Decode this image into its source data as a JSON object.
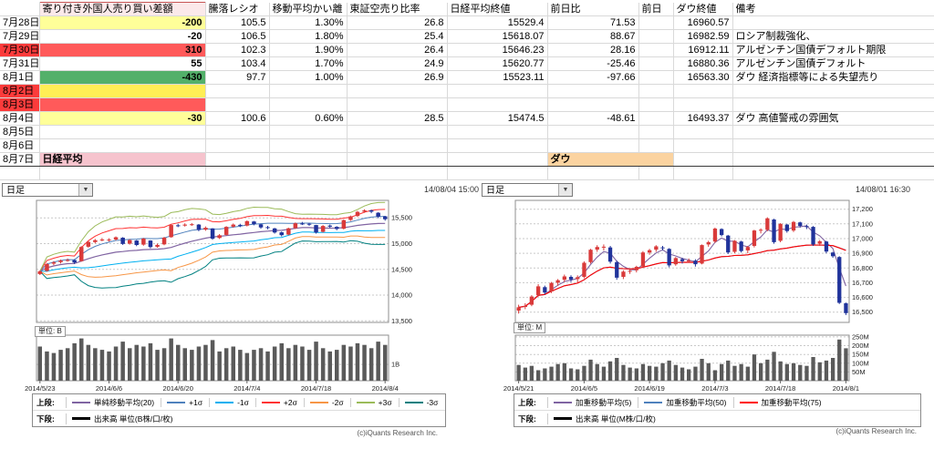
{
  "spreadsheet": {
    "header": {
      "col_b": "寄り付き外国人売り買い差額",
      "col_c": "騰落レシオ",
      "col_d": "移動平均かい離",
      "col_e": "東証空売り比率",
      "col_f": "日経平均終値",
      "col_g": "前日比",
      "col_h": "前日",
      "col_i": "ダウ終値",
      "col_j": "備考"
    },
    "rows": [
      {
        "date": "7月28日",
        "diff": "-200",
        "ratio": "105.5",
        "deviation": "1.30%",
        "short_ratio": "26.8",
        "nikkei_close": "15529.4",
        "change": "71.53",
        "dow_close": "16960.57",
        "note": ""
      },
      {
        "date": "7月29日",
        "diff": "-20",
        "ratio": "106.5",
        "deviation": "1.80%",
        "short_ratio": "25.4",
        "nikkei_close": "15618.07",
        "change": "88.67",
        "dow_close": "16982.59",
        "note": "ロシア制裁強化、"
      },
      {
        "date": "7月30日",
        "diff": "310",
        "ratio": "102.3",
        "deviation": "1.90%",
        "short_ratio": "26.4",
        "nikkei_close": "15646.23",
        "change": "28.16",
        "dow_close": "16912.11",
        "note": "アルゼンチン国債デフォルト期限"
      },
      {
        "date": "7月31日",
        "diff": "55",
        "ratio": "103.4",
        "deviation": "1.70%",
        "short_ratio": "24.9",
        "nikkei_close": "15620.77",
        "change": "-25.46",
        "dow_close": "16880.36",
        "note": "アルゼンチン国債デフォルト"
      },
      {
        "date": "8月1日",
        "diff": "-430",
        "ratio": "97.7",
        "deviation": "1.00%",
        "short_ratio": "26.9",
        "nikkei_close": "15523.11",
        "change": "-97.66",
        "dow_close": "16563.30",
        "note": "ダウ 経済指標等による失望売り"
      },
      {
        "date": "8月2日"
      },
      {
        "date": "8月3日"
      },
      {
        "date": "8月4日",
        "diff": "-30",
        "ratio": "100.6",
        "deviation": "0.60%",
        "short_ratio": "28.5",
        "nikkei_close": "15474.5",
        "change": "-48.61",
        "dow_close": "16493.37",
        "note": "ダウ 高値警戒の雰囲気"
      },
      {
        "date": "8月5日"
      },
      {
        "date": "8月6日"
      },
      {
        "date": "8月7日",
        "label_nikkei": "日経平均",
        "label_dow": "ダウ"
      }
    ]
  },
  "chart_data": [
    {
      "type": "candlestick",
      "title": "日経平均 日足",
      "interval_label": "日足",
      "timestamp": "14/08/04 15:00",
      "up_color": "#d93a3a",
      "down_color": "#20339b",
      "volume_color": "#5a5a5a",
      "grid_color": "#c9c9c9",
      "ylim": [
        13470,
        15840
      ],
      "y_ticks": [
        13500,
        14000,
        14500,
        15000,
        15500
      ],
      "y_tick_labels": [
        "13,500",
        "14,000",
        "14,500",
        "15,000",
        "15,500"
      ],
      "x_tick_labels": [
        "2014/5/23",
        "2014/6/6",
        "2014/6/20",
        "2014/7/4",
        "2014/7/18",
        "2014/8/4"
      ],
      "x_tick_indices": [
        0,
        10,
        20,
        30,
        40,
        50
      ],
      "candles": [
        [
          14410,
          14480,
          14390,
          14462
        ],
        [
          14470,
          14620,
          14455,
          14602
        ],
        [
          14610,
          14660,
          14580,
          14636
        ],
        [
          14640,
          14690,
          14615,
          14671
        ],
        [
          14675,
          14710,
          14650,
          14682
        ],
        [
          14680,
          14695,
          14605,
          14632
        ],
        [
          14660,
          14950,
          14650,
          14935
        ],
        [
          14940,
          15050,
          14920,
          15034
        ],
        [
          15030,
          15090,
          15005,
          15067
        ],
        [
          15070,
          15110,
          15045,
          15079
        ],
        [
          15075,
          15105,
          15040,
          15077
        ],
        [
          15080,
          15140,
          15060,
          15124
        ],
        [
          15115,
          15125,
          14975,
          14994
        ],
        [
          15000,
          15085,
          14980,
          15069
        ],
        [
          15060,
          15070,
          14950,
          14973
        ],
        [
          14980,
          15110,
          14960,
          15097
        ],
        [
          15060,
          15065,
          14910,
          14933
        ],
        [
          14940,
          15000,
          14920,
          14975
        ],
        [
          14985,
          15130,
          14970,
          15115
        ],
        [
          15125,
          15375,
          15115,
          15361
        ],
        [
          15355,
          15385,
          15320,
          15349
        ],
        [
          15350,
          15395,
          15330,
          15369
        ],
        [
          15375,
          15400,
          15345,
          15376
        ],
        [
          15370,
          15380,
          15240,
          15266
        ],
        [
          15270,
          15335,
          15250,
          15308
        ],
        [
          15295,
          15300,
          15075,
          15095
        ],
        [
          15110,
          15185,
          15090,
          15162
        ],
        [
          15170,
          15340,
          15155,
          15326
        ],
        [
          15330,
          15390,
          15310,
          15369
        ],
        [
          15365,
          15385,
          15320,
          15348
        ],
        [
          15350,
          15450,
          15335,
          15437
        ],
        [
          15430,
          15440,
          15355,
          15379
        ],
        [
          15375,
          15385,
          15290,
          15314
        ],
        [
          15320,
          15345,
          15280,
          15302
        ],
        [
          15295,
          15305,
          15195,
          15216
        ],
        [
          15220,
          15235,
          15140,
          15164
        ],
        [
          15175,
          15310,
          15160,
          15297
        ],
        [
          15300,
          15410,
          15285,
          15395
        ],
        [
          15390,
          15420,
          15360,
          15379
        ],
        [
          15385,
          15400,
          15345,
          15370
        ],
        [
          15360,
          15365,
          15195,
          15215
        ],
        [
          15230,
          15360,
          15215,
          15343
        ],
        [
          15350,
          15370,
          15305,
          15328
        ],
        [
          15325,
          15340,
          15260,
          15284
        ],
        [
          15290,
          15470,
          15275,
          15457
        ],
        [
          15460,
          15545,
          15440,
          15529
        ],
        [
          15535,
          15635,
          15520,
          15618
        ],
        [
          15620,
          15665,
          15600,
          15646
        ],
        [
          15645,
          15660,
          15590,
          15620
        ],
        [
          15600,
          15610,
          15495,
          15523
        ],
        [
          15530,
          15540,
          15445,
          15474
        ]
      ],
      "volumes": [
        2.1,
        1.8,
        1.7,
        1.9,
        2.0,
        2.3,
        2.6,
        2.2,
        2.0,
        1.9,
        1.8,
        2.1,
        2.4,
        2.0,
        2.2,
        2.1,
        2.3,
        1.9,
        2.0,
        2.6,
        2.2,
        2.0,
        1.9,
        2.1,
        2.2,
        2.5,
        1.8,
        2.0,
        2.1,
        1.9,
        1.7,
        1.9,
        2.0,
        1.8,
        2.1,
        2.3,
        2.0,
        2.2,
        2.1,
        1.9,
        2.4,
        2.0,
        1.8,
        1.9,
        2.2,
        2.1,
        2.3,
        2.2,
        2.0,
        2.4,
        2.2
      ],
      "volume_max": 2.8,
      "volume_ticks": [
        1
      ],
      "volume_tick_labels": [
        "1B"
      ],
      "volume_unit_label": "単位: B",
      "overlays": {
        "type": "bollinger",
        "window": 20,
        "multipliers": [
          1,
          2,
          3
        ]
      },
      "legend": {
        "upper_label": "上段:",
        "lower_label": "下段:",
        "upper_items": [
          {
            "label": "単純移動平均(20)",
            "color": "#8064a2"
          },
          {
            "label": "+1σ",
            "color": "#4f81bd"
          },
          {
            "label": "-1σ",
            "color": "#00b0f0"
          },
          {
            "label": "+2σ",
            "color": "#ff3333"
          },
          {
            "label": "-2σ",
            "color": "#f79646"
          },
          {
            "label": "+3σ",
            "color": "#9bbb59"
          },
          {
            "label": "-3σ",
            "color": "#008080"
          }
        ],
        "lower_items": [
          {
            "label": "出来高 単位(B株/口/枚)",
            "color": "#000000"
          }
        ]
      },
      "copyright": "(c)iQuants Research Inc."
    },
    {
      "type": "candlestick",
      "title": "ダウ 日足",
      "interval_label": "日足",
      "timestamp": "14/08/01 16:30",
      "up_color": "#d93a3a",
      "down_color": "#20339b",
      "volume_color": "#5a5a5a",
      "grid_color": "#c9c9c9",
      "ylim": [
        16430,
        17260
      ],
      "y_ticks": [
        16500,
        16600,
        16700,
        16800,
        16900,
        17000,
        17100,
        17200
      ],
      "y_tick_labels": [
        "16,500",
        "16,600",
        "16,700",
        "16,800",
        "16,900",
        "17,000",
        "17,100",
        "17,200"
      ],
      "x_tick_labels": [
        "2014/5/21",
        "2014/6/5",
        "2014/6/19",
        "2014/7/3",
        "2014/7/18",
        "2014/8/1"
      ],
      "x_tick_indices": [
        0,
        10,
        20,
        30,
        40,
        50
      ],
      "candles": [
        [
          16510,
          16550,
          16490,
          16533
        ],
        [
          16535,
          16560,
          16520,
          16543
        ],
        [
          16550,
          16615,
          16540,
          16606
        ],
        [
          16615,
          16690,
          16605,
          16675
        ],
        [
          16670,
          16680,
          16620,
          16633
        ],
        [
          16640,
          16705,
          16630,
          16698
        ],
        [
          16700,
          16725,
          16680,
          16717
        ],
        [
          16720,
          16755,
          16705,
          16743
        ],
        [
          16740,
          16750,
          16705,
          16722
        ],
        [
          16725,
          16750,
          16700,
          16737
        ],
        [
          16740,
          16845,
          16730,
          16836
        ],
        [
          16840,
          16930,
          16830,
          16924
        ],
        [
          16925,
          16955,
          16910,
          16943
        ],
        [
          16940,
          16960,
          16920,
          16945
        ],
        [
          16940,
          16950,
          16830,
          16843
        ],
        [
          16840,
          16850,
          16720,
          16734
        ],
        [
          16740,
          16785,
          16725,
          16775
        ],
        [
          16775,
          16795,
          16760,
          16781
        ],
        [
          16785,
          16815,
          16770,
          16808
        ],
        [
          16810,
          16915,
          16800,
          16906
        ],
        [
          16905,
          16930,
          16890,
          16921
        ],
        [
          16925,
          16955,
          16910,
          16947
        ],
        [
          16940,
          16950,
          16920,
          16937
        ],
        [
          16930,
          16935,
          16805,
          16818
        ],
        [
          16825,
          16875,
          16815,
          16867
        ],
        [
          16860,
          16870,
          16830,
          16846
        ],
        [
          16850,
          16865,
          16835,
          16851
        ],
        [
          16850,
          16860,
          16810,
          16826
        ],
        [
          16830,
          16960,
          16825,
          16956
        ],
        [
          16960,
          16985,
          16945,
          16976
        ],
        [
          16980,
          17075,
          16970,
          17068
        ],
        [
          17065,
          17070,
          17015,
          17024
        ],
        [
          17020,
          17025,
          16895,
          16906
        ],
        [
          16910,
          16990,
          16900,
          16985
        ],
        [
          16980,
          16985,
          16905,
          16915
        ],
        [
          16920,
          16950,
          16900,
          16943
        ],
        [
          16950,
          17060,
          16940,
          17055
        ],
        [
          17055,
          17070,
          17035,
          17060
        ],
        [
          17060,
          17145,
          17050,
          17138
        ],
        [
          17130,
          17135,
          16965,
          16976
        ],
        [
          16985,
          17105,
          16975,
          17100
        ],
        [
          17095,
          17100,
          17040,
          17051
        ],
        [
          17055,
          17120,
          17045,
          17113
        ],
        [
          17110,
          17115,
          17075,
          17086
        ],
        [
          17085,
          17095,
          17065,
          17083
        ],
        [
          17080,
          17085,
          16950,
          16960
        ],
        [
          16965,
          16990,
          16950,
          16982
        ],
        [
          16980,
          16985,
          16900,
          16912
        ],
        [
          16905,
          16910,
          16870,
          16880
        ],
        [
          16875,
          16880,
          16555,
          16563
        ],
        [
          16560,
          16565,
          16480,
          16493
        ]
      ],
      "volumes": [
        90,
        75,
        85,
        60,
        70,
        80,
        95,
        100,
        70,
        65,
        85,
        120,
        95,
        80,
        110,
        130,
        90,
        75,
        70,
        95,
        85,
        80,
        100,
        115,
        90,
        75,
        65,
        80,
        125,
        100,
        60,
        95,
        115,
        85,
        95,
        80,
        150,
        100,
        120,
        165,
        110,
        95,
        100,
        90,
        85,
        135,
        105,
        115,
        130,
        235,
        185
      ],
      "volume_max": 260,
      "volume_ticks": [
        50,
        100,
        150,
        200,
        250
      ],
      "volume_tick_labels": [
        "50M",
        "100M",
        "150M",
        "200M",
        "250M"
      ],
      "volume_unit_label": "単位: M",
      "overlays": {
        "type": "wma",
        "windows": [
          5,
          50,
          75
        ]
      },
      "legend": {
        "upper_label": "上段:",
        "lower_label": "下段:",
        "upper_items": [
          {
            "label": "加重移動平均(5)",
            "color": "#8064a2"
          },
          {
            "label": "加重移動平均(50)",
            "color": "#4f81bd"
          },
          {
            "label": "加重移動平均(75)",
            "color": "#ff0000"
          }
        ],
        "lower_items": [
          {
            "label": "出来高 単位(M株/口/枚)",
            "color": "#000000"
          }
        ]
      },
      "copyright": "(c)iQuants Research Inc."
    }
  ]
}
